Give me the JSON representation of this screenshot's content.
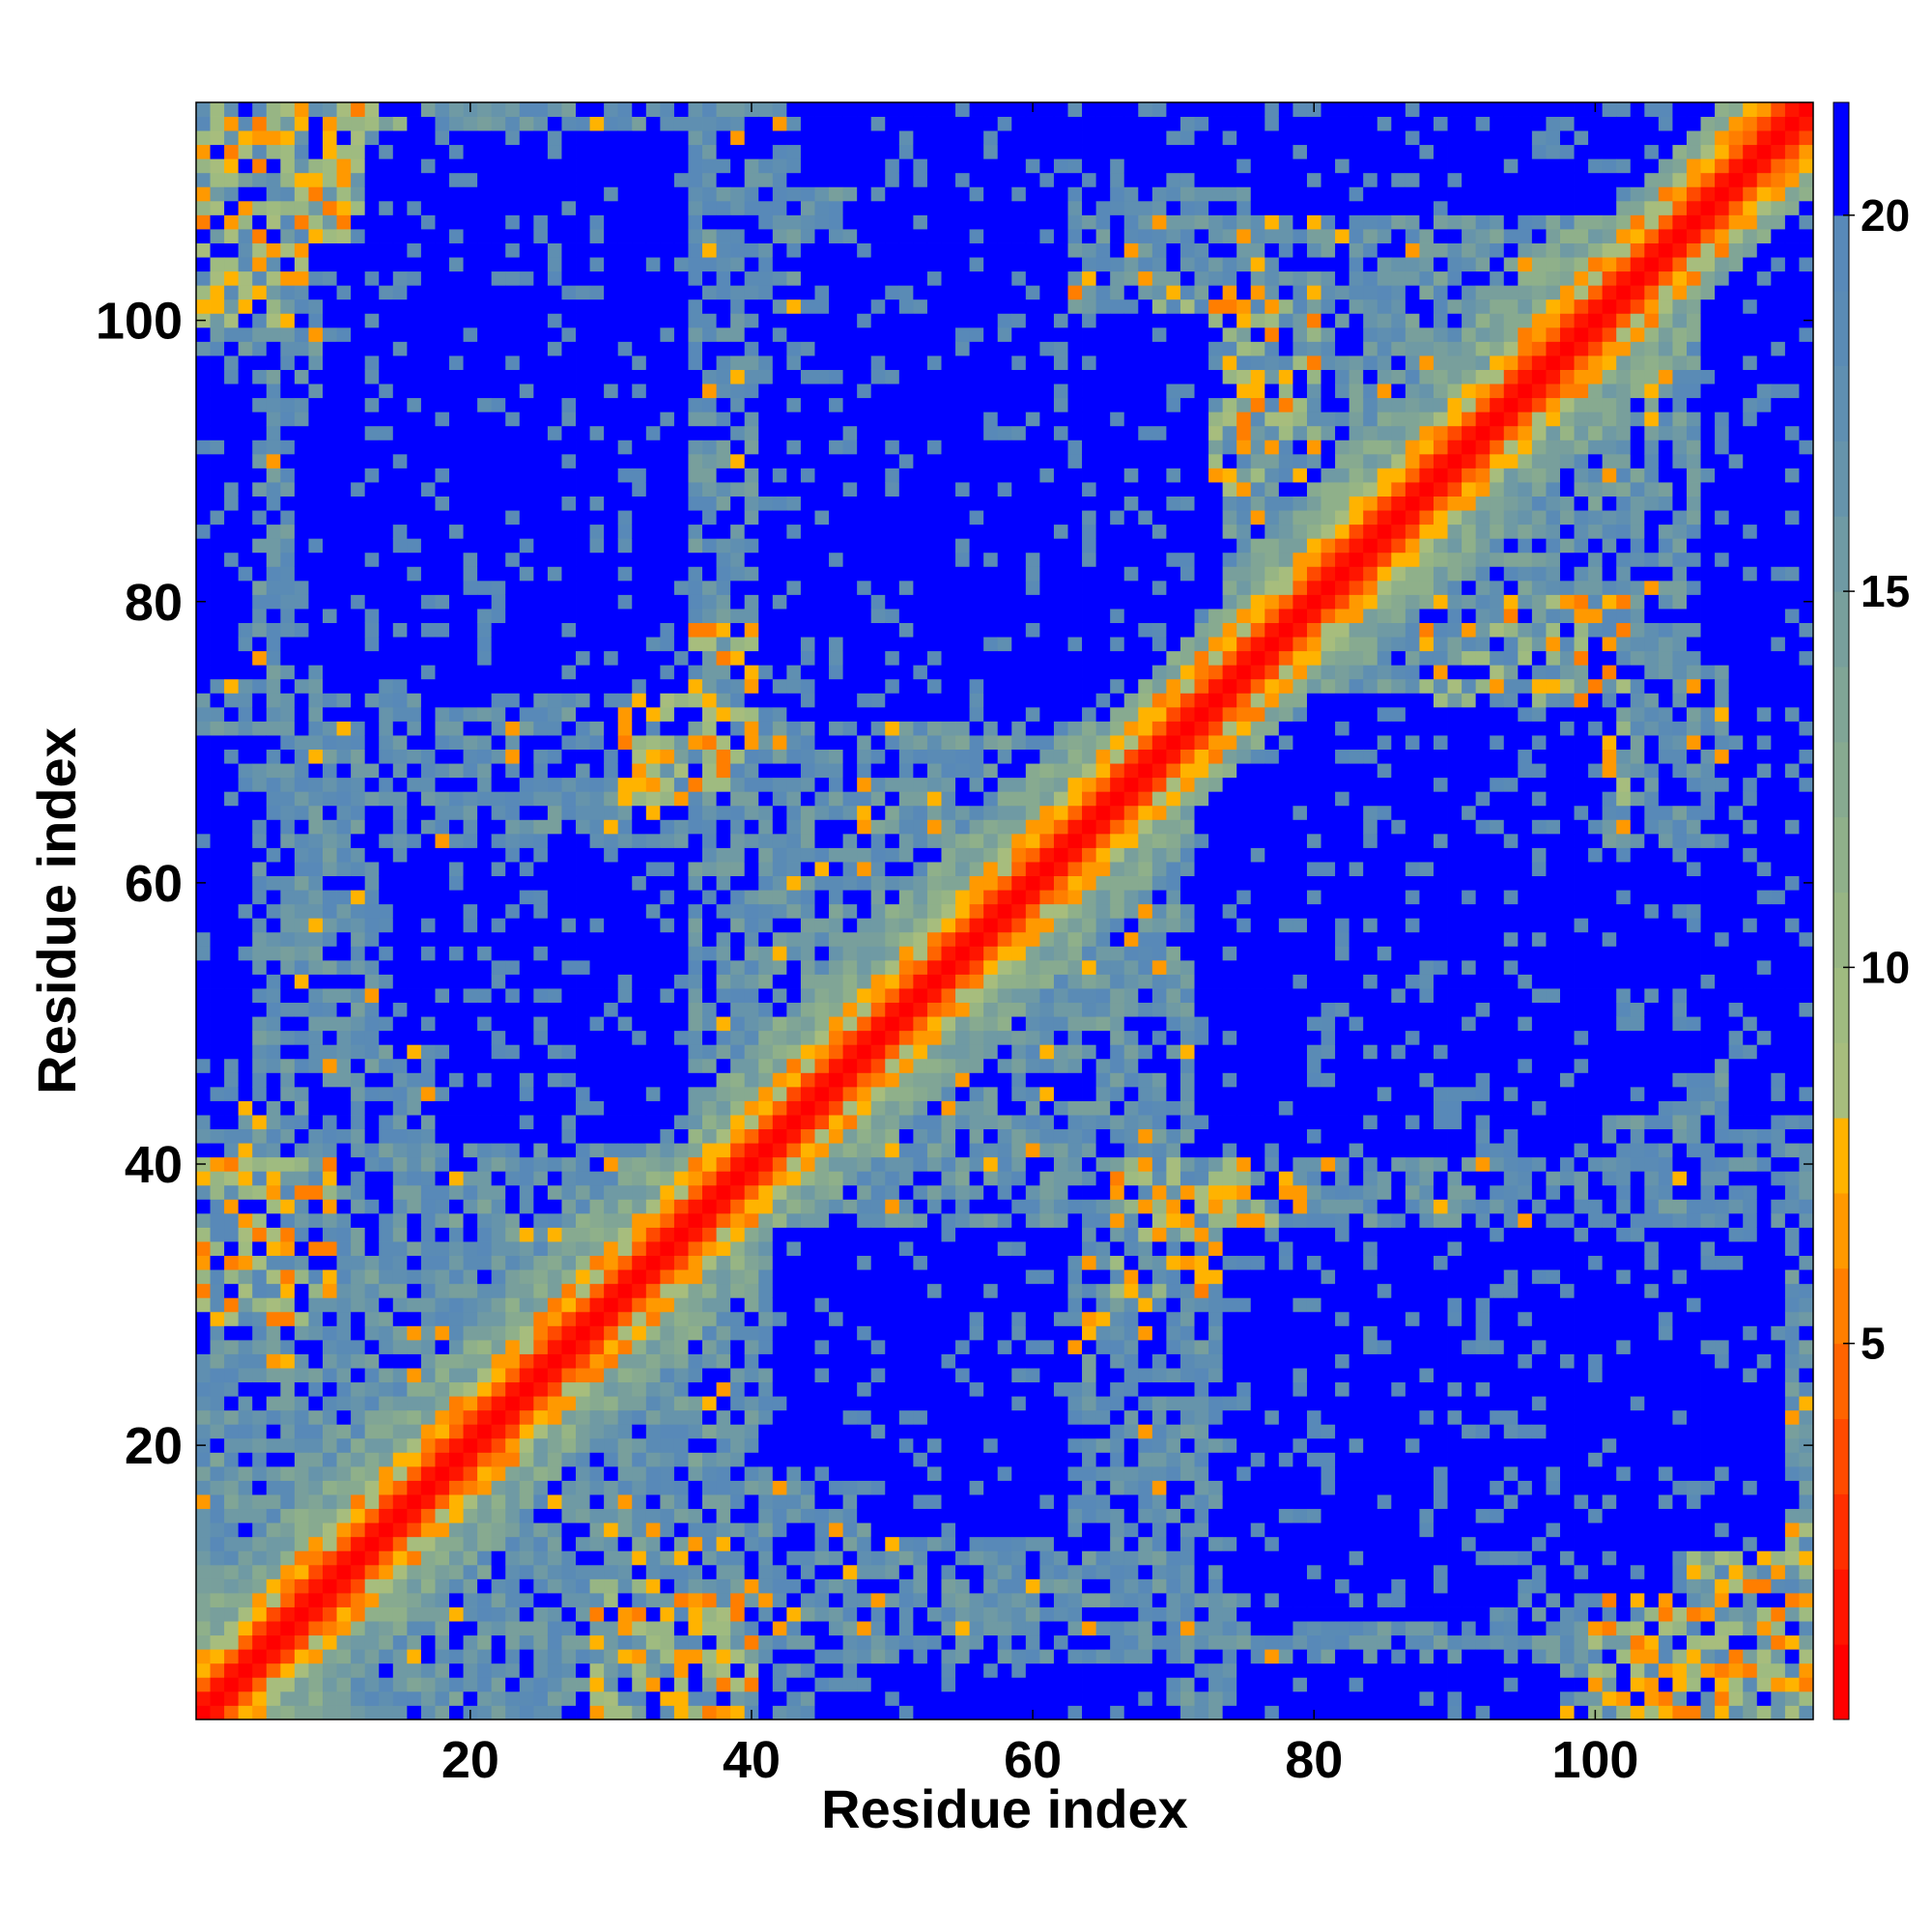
{
  "chart_data": {
    "type": "heatmap",
    "title": "",
    "xlabel": "Residue index",
    "ylabel": "Residue index",
    "n_residues": 115,
    "xlim": [
      0.5,
      115.5
    ],
    "ylim": [
      0.5,
      115.5
    ],
    "x_ticks": [
      20,
      40,
      60,
      80,
      100
    ],
    "y_ticks": [
      20,
      40,
      60,
      80,
      100
    ],
    "colorbar": {
      "range": [
        0,
        21.5
      ],
      "ticks": [
        5,
        10,
        15,
        20
      ],
      "bands": [
        {
          "from": 0,
          "to": 1,
          "color": "#ff0000"
        },
        {
          "from": 1,
          "to": 2,
          "color": "#ff1500"
        },
        {
          "from": 2,
          "to": 3,
          "color": "#ff2f00"
        },
        {
          "from": 3,
          "to": 4,
          "color": "#ff4a00"
        },
        {
          "from": 4,
          "to": 5,
          "color": "#ff6400"
        },
        {
          "from": 5,
          "to": 6,
          "color": "#ff7e00"
        },
        {
          "from": 6,
          "to": 7,
          "color": "#ff9900"
        },
        {
          "from": 7,
          "to": 8,
          "color": "#ffb300"
        },
        {
          "from": 8,
          "to": 9,
          "color": "#a7bd7d"
        },
        {
          "from": 9,
          "to": 10,
          "color": "#9fbb80"
        },
        {
          "from": 10,
          "to": 11,
          "color": "#97b584"
        },
        {
          "from": 11,
          "to": 12,
          "color": "#8fb08a"
        },
        {
          "from": 12,
          "to": 13,
          "color": "#87aa90"
        },
        {
          "from": 13,
          "to": 14,
          "color": "#80a596"
        },
        {
          "from": 14,
          "to": 15,
          "color": "#789f9c"
        },
        {
          "from": 15,
          "to": 16,
          "color": "#6f9aa4"
        },
        {
          "from": 16,
          "to": 17,
          "color": "#6694ab"
        },
        {
          "from": 17,
          "to": 18,
          "color": "#5f8fb1"
        },
        {
          "from": 18,
          "to": 19,
          "color": "#5a8bb5"
        },
        {
          "from": 19,
          "to": 20,
          "color": "#5889b8"
        },
        {
          "from": 20,
          "to": 21.5,
          "color": "#0000ff"
        }
      ]
    },
    "far_blocks": [
      {
        "x": [
          10,
          35
        ],
        "y": [
          74,
          100
        ]
      },
      {
        "x": [
          41,
          72
        ],
        "y": [
          72,
          100
        ]
      },
      {
        "x": [
          48,
          62
        ],
        "y": [
          100,
          115
        ]
      },
      {
        "x": [
          13,
          35
        ],
        "y": [
          100,
          113
        ]
      },
      {
        "x": [
          74,
          88
        ],
        "y": [
          45,
          73
        ]
      },
      {
        "x": [
          18,
          35
        ],
        "y": [
          42,
          62
        ]
      },
      {
        "x": [
          49,
          62
        ],
        "y": [
          14,
          34
        ]
      },
      {
        "x": [
          76,
          92
        ],
        "y": [
          8,
          34
        ]
      },
      {
        "x": [
          90,
          105
        ],
        "y": [
          44,
          60
        ]
      },
      {
        "x": [
          89,
          105
        ],
        "y": [
          10,
          24
        ]
      },
      {
        "x": [
          76,
          115
        ],
        "y": [
          108,
          115
        ]
      },
      {
        "x": [
          110,
          115
        ],
        "y": [
          44,
          88
        ]
      },
      {
        "x": [
          0,
          2
        ],
        "y": [
          45,
          63
        ]
      },
      {
        "x": [
          0,
          4
        ],
        "y": [
          75,
          97
        ]
      },
      {
        "x": [
          48,
          70
        ],
        "y": [
          0,
          4
        ]
      }
    ],
    "contact_bands": [
      {
        "x": [
          0,
          15
        ],
        "y": [
          100,
          115
        ],
        "strength": 0.55
      },
      {
        "x": [
          100,
          115
        ],
        "y": [
          0,
          15
        ],
        "strength": 0.55
      },
      {
        "x": [
          31,
          40
        ],
        "y": [
          66,
          78
        ],
        "strength": 0.5
      },
      {
        "x": [
          66,
          78
        ],
        "y": [
          31,
          40
        ],
        "strength": 0.5
      },
      {
        "x": [
          0,
          10
        ],
        "y": [
          29,
          40
        ],
        "strength": 0.5
      },
      {
        "x": [
          29,
          40
        ],
        "y": [
          0,
          10
        ],
        "strength": 0.5
      },
      {
        "x": [
          88,
          102
        ],
        "y": [
          60,
          80
        ],
        "strength": 0.35
      },
      {
        "x": [
          60,
          80
        ],
        "y": [
          88,
          102
        ],
        "strength": 0.35
      }
    ]
  },
  "colors": {
    "diagonal": "#ff0000",
    "near_contact": "#ff9900",
    "far": "#0000ff",
    "axis": "#000000"
  }
}
